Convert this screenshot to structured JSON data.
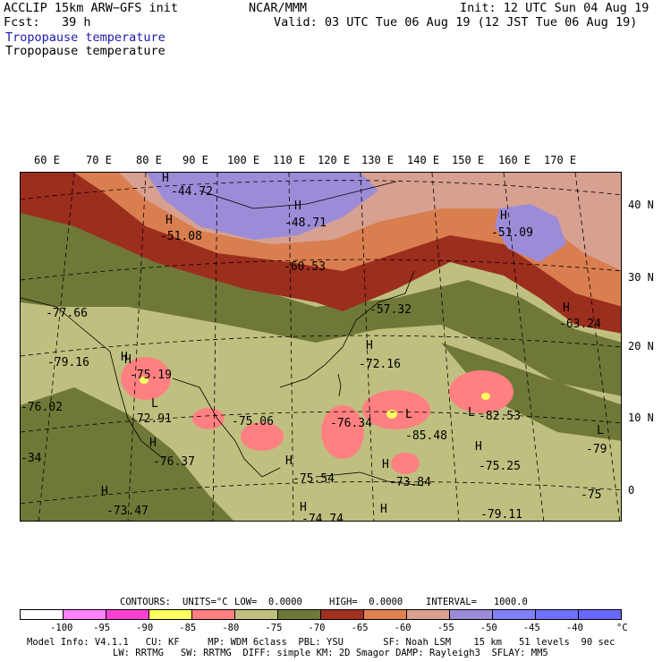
{
  "header": {
    "model": "ACCLIP 15km ARW−GFS init",
    "org": "NCAR/MMM",
    "init": "Init: 12 UTC Sun 04 Aug 19",
    "fcst": "Fcst:   39 h",
    "valid": "Valid: 03 UTC Tue 06 Aug 19 (12 JST Tue 06 Aug 19)",
    "field_line_1": "Tropopause temperature",
    "field_line_2": "Tropopause temperature"
  },
  "longitude_labels": [
    "60 E",
    "70 E",
    "80 E",
    "90 E",
    "100 E",
    "110 E",
    "120 E",
    "130 E",
    "140 E",
    "150 E",
    "160 E",
    "170 E"
  ],
  "latitude_labels": [
    "40 N",
    "30 N",
    "20 N",
    "10 N",
    "0"
  ],
  "map_labels": [
    {
      "text": "H",
      "kind": "high"
    },
    {
      "text": "-44.72",
      "kind": "value"
    },
    {
      "text": "H",
      "kind": "high"
    },
    {
      "text": "-51.08",
      "kind": "value"
    },
    {
      "text": "H",
      "kind": "high"
    },
    {
      "text": "-48.71",
      "kind": "value"
    },
    {
      "text": "-60.53",
      "kind": "value"
    },
    {
      "text": "H",
      "kind": "high"
    },
    {
      "text": "-51.09",
      "kind": "value"
    },
    {
      "text": "-57.32",
      "kind": "value"
    },
    {
      "text": "H",
      "kind": "high"
    },
    {
      "text": "-63.24",
      "kind": "value"
    },
    {
      "text": "-77.66",
      "kind": "value"
    },
    {
      "text": "H",
      "kind": "high"
    },
    {
      "text": "-79.16",
      "kind": "value"
    },
    {
      "text": "H",
      "kind": "high"
    },
    {
      "text": "-75.19",
      "kind": "value"
    },
    {
      "text": "H",
      "kind": "high"
    },
    {
      "text": "-72.16",
      "kind": "value"
    },
    {
      "text": "-76.02",
      "kind": "value"
    },
    {
      "text": "L",
      "kind": "low"
    },
    {
      "text": "-72.91",
      "kind": "value"
    },
    {
      "text": "-75.06",
      "kind": "value"
    },
    {
      "text": "-76.34",
      "kind": "value"
    },
    {
      "text": "L",
      "kind": "low"
    },
    {
      "text": "-85.48",
      "kind": "value"
    },
    {
      "text": "L",
      "kind": "low"
    },
    {
      "text": "-82.53",
      "kind": "value"
    },
    {
      "text": "H",
      "kind": "high"
    },
    {
      "text": "-76.37",
      "kind": "value"
    },
    {
      "text": "-34",
      "kind": "value"
    },
    {
      "text": "H",
      "kind": "high"
    },
    {
      "text": "-75.54",
      "kind": "value"
    },
    {
      "text": "H",
      "kind": "high"
    },
    {
      "text": "-73.84",
      "kind": "value"
    },
    {
      "text": "H",
      "kind": "high"
    },
    {
      "text": "-75.25",
      "kind": "value"
    },
    {
      "text": "L",
      "kind": "low"
    },
    {
      "text": "-79",
      "kind": "value"
    },
    {
      "text": "H",
      "kind": "high"
    },
    {
      "text": "-73.47",
      "kind": "value"
    },
    {
      "text": "H",
      "kind": "high"
    },
    {
      "text": "-74.74",
      "kind": "value"
    },
    {
      "text": "H",
      "kind": "high"
    },
    {
      "text": "-79.11",
      "kind": "value"
    },
    {
      "text": "-75",
      "kind": "value"
    }
  ],
  "contour_info": {
    "contours": "CONTOURS:",
    "units": "UNITS=°C",
    "low": "LOW=  0.0000",
    "high": "HIGH=  0.0000",
    "interval": "INTERVAL=   1000.0"
  },
  "legend": {
    "colors": [
      "#ffffff",
      "#ff80ff",
      "#ff40d0",
      "#ffff60",
      "#ff8080",
      "#bfc080",
      "#707838",
      "#a03020",
      "#e08050",
      "#d8a090",
      "#9c8cd8",
      "#8080f8",
      "#7070ff",
      "#6868ff"
    ],
    "tick_labels": [
      "-100",
      "-95",
      "-90",
      "-85",
      "-80",
      "-75",
      "-70",
      "-65",
      "-60",
      "-55",
      "-50",
      "-45",
      "-40"
    ],
    "unit_label": "°C"
  },
  "footer": {
    "line1": "Model Info: V4.1.1   CU: KF     MP: WDM 6class  PBL: YSU       SF: Noah LSM    15 km   51 levels  90 sec",
    "line2": "LW: RRTMG   SW: RRTMG  DIFF: simple KM: 2D Smagor DAMP: Rayleigh3  SFLAY: MM5"
  },
  "colors": {
    "cold_band": "#bfc080",
    "olive_band": "#707838",
    "dark_red_band": "#9c2e1e",
    "orange_band": "#d97e4f",
    "rose_band": "#d8a090",
    "violet_region": "#9c8cd8",
    "pink_cells": "#ff8080",
    "yellow_cells": "#ffff60"
  }
}
